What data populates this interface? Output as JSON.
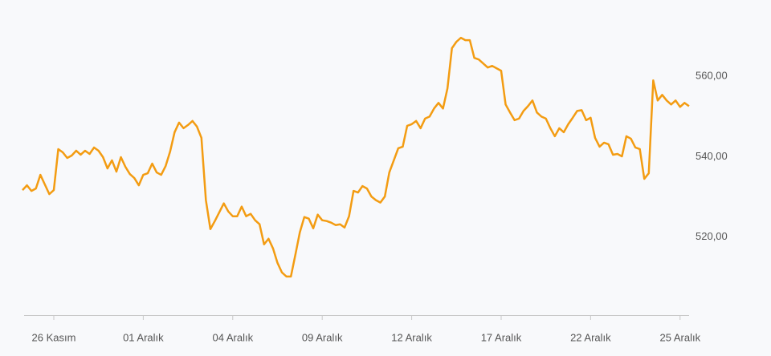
{
  "chart_data": {
    "type": "line",
    "categories": [
      null,
      null,
      null,
      null,
      null,
      null,
      null,
      "26 Kasım",
      null,
      null,
      null,
      null,
      null,
      null,
      null,
      null,
      null,
      null,
      null,
      null,
      null,
      null,
      null,
      null,
      null,
      null,
      null,
      "01 Aralık",
      null,
      null,
      null,
      null,
      null,
      null,
      null,
      null,
      null,
      null,
      null,
      null,
      null,
      null,
      null,
      null,
      null,
      null,
      null,
      "04 Aralık",
      null,
      null,
      null,
      null,
      null,
      null,
      null,
      null,
      null,
      null,
      null,
      null,
      null,
      null,
      null,
      null,
      null,
      null,
      null,
      "09 Aralık",
      null,
      null,
      null,
      null,
      null,
      null,
      null,
      null,
      null,
      null,
      null,
      null,
      null,
      null,
      null,
      null,
      null,
      null,
      null,
      "12 Aralık",
      null,
      null,
      null,
      null,
      null,
      null,
      null,
      null,
      null,
      null,
      null,
      null,
      null,
      null,
      null,
      null,
      null,
      null,
      null,
      "17 Aralık",
      null,
      null,
      null,
      null,
      null,
      null,
      null,
      null,
      null,
      null,
      null,
      null,
      null,
      null,
      null,
      null,
      null,
      null,
      null,
      "22 Aralık",
      null,
      null,
      null,
      null,
      null,
      null,
      null,
      null,
      null,
      null,
      null,
      null,
      null,
      null,
      null,
      null,
      null,
      null,
      null,
      "25 Aralık",
      null,
      null
    ],
    "series": [
      {
        "name": null,
        "color": "#f39c12",
        "values": [
          531.7,
          532.9,
          531.5,
          532.1,
          535.5,
          533.1,
          530.7,
          531.7,
          541.9,
          541.1,
          539.7,
          540.3,
          541.5,
          540.5,
          541.5,
          540.7,
          542.3,
          541.5,
          539.9,
          537.1,
          539.1,
          536.3,
          539.9,
          537.5,
          535.7,
          534.7,
          532.9,
          535.5,
          535.9,
          538.3,
          536.1,
          535.5,
          537.7,
          541.3,
          546.1,
          548.5,
          547.1,
          547.9,
          548.9,
          547.5,
          544.7,
          529.2,
          522.0,
          524.0,
          526.2,
          528.4,
          526.4,
          525.2,
          525.2,
          527.6,
          525.2,
          525.8,
          524.2,
          523.2,
          518.2,
          519.6,
          517.2,
          513.6,
          511.2,
          510.2,
          510.2,
          515.6,
          521.2,
          525.0,
          524.6,
          522.2,
          525.6,
          524.2,
          524.0,
          523.6,
          523.0,
          523.2,
          522.4,
          525.2,
          531.5,
          531.1,
          532.7,
          532.1,
          530.1,
          529.2,
          528.6,
          530.1,
          536.1,
          539.1,
          542.1,
          542.5,
          547.7,
          548.1,
          548.9,
          547.1,
          549.5,
          550.0,
          552.0,
          553.4,
          552.0,
          557.0,
          567.0,
          568.6,
          569.6,
          569.0,
          569.0,
          564.6,
          564.2,
          563.2,
          562.2,
          562.6,
          562.0,
          561.4,
          553.0,
          551.0,
          549.1,
          549.5,
          551.4,
          552.6,
          554.0,
          551.0,
          550.0,
          549.5,
          547.1,
          545.1,
          547.1,
          546.1,
          548.1,
          549.7,
          551.4,
          551.6,
          549.1,
          549.7,
          544.7,
          542.5,
          543.5,
          543.1,
          540.5,
          540.7,
          540.1,
          545.1,
          544.5,
          542.3,
          541.9,
          534.5,
          535.9,
          559.0,
          554.0,
          555.4,
          554.0,
          553.0,
          554.0,
          552.4,
          553.4,
          552.6
        ]
      }
    ],
    "ylim": [
      500.6,
      579
    ],
    "yticks": [
      {
        "value": 520,
        "label": "520,00"
      },
      {
        "value": 540,
        "label": "540,00"
      },
      {
        "value": 560,
        "label": "560,00"
      }
    ],
    "grid": false
  }
}
